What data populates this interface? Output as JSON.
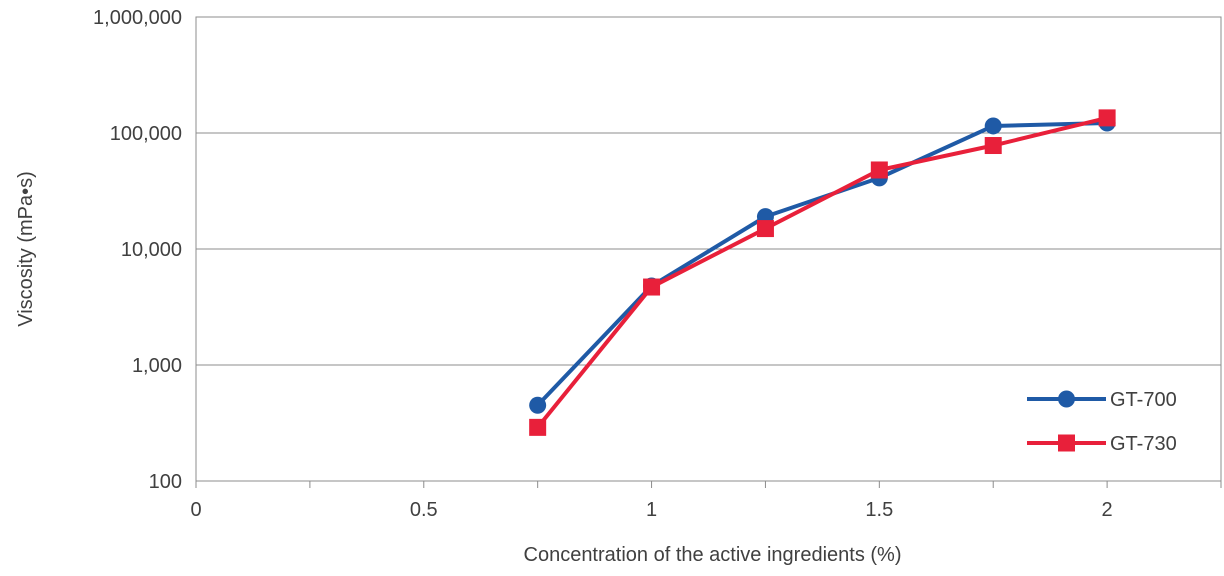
{
  "chart_data": {
    "type": "line",
    "title": "",
    "xlabel": "Concentration of the active ingredients (%)",
    "ylabel": "Viscosity (mPa•s)",
    "xlim": [
      0,
      2.25
    ],
    "ylim": [
      100,
      1000000
    ],
    "y_scale": "log",
    "x_ticks": [
      0,
      0.5,
      1,
      1.5,
      2
    ],
    "x_tick_labels": [
      "0",
      "0.5",
      "1",
      "1.5",
      "2"
    ],
    "y_ticks": [
      100,
      1000,
      10000,
      100000,
      1000000
    ],
    "y_tick_labels": [
      "100",
      "1,000",
      "10,000",
      "100,000",
      "1,000,000"
    ],
    "grid": "horizontal",
    "legend_position": "bottom-right",
    "series": [
      {
        "name": "GT-700",
        "color": "#1f5aa6",
        "marker": "circle",
        "x": [
          0.75,
          1,
          1.25,
          1.5,
          1.75,
          2
        ],
        "y": [
          450,
          4800,
          19000,
          41000,
          115000,
          122000
        ]
      },
      {
        "name": "GT-730",
        "color": "#e8203a",
        "marker": "square",
        "x": [
          0.75,
          1,
          1.25,
          1.5,
          1.75,
          2
        ],
        "y": [
          290,
          4700,
          15000,
          48000,
          78000,
          135000
        ]
      }
    ]
  }
}
